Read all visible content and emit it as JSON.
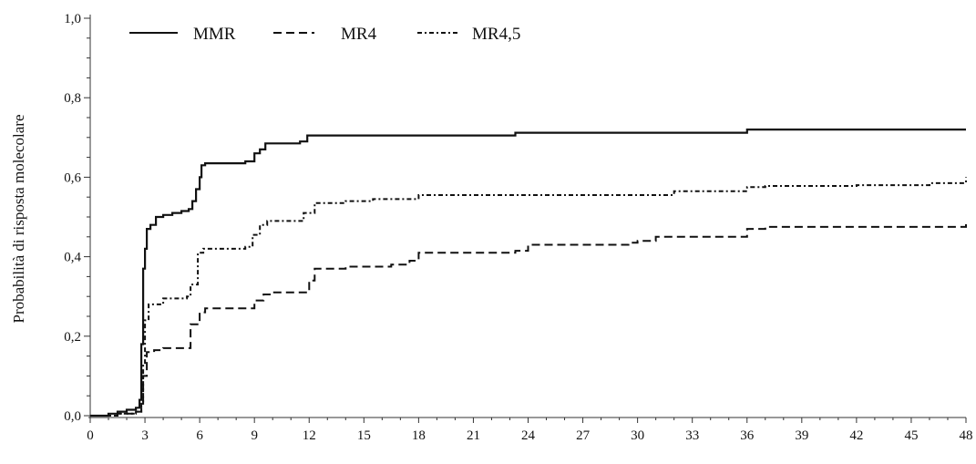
{
  "chart_data": {
    "type": "line",
    "title": "",
    "xlabel": "",
    "ylabel": "Probabilità di risposta molecolare",
    "xlim": [
      0,
      48
    ],
    "ylim": [
      0,
      1.0
    ],
    "x_ticks": [
      0,
      3,
      6,
      9,
      12,
      15,
      18,
      21,
      24,
      27,
      30,
      33,
      36,
      39,
      42,
      45,
      48
    ],
    "x_tick_labels": [
      "0",
      "3",
      "6",
      "9",
      "12",
      "15",
      "18",
      "21",
      "24",
      "27",
      "30",
      "33",
      "36",
      "39",
      "42",
      "45",
      "48"
    ],
    "y_ticks": [
      0,
      0.2,
      0.4,
      0.6,
      0.8,
      1.0
    ],
    "y_tick_labels": [
      "0,0",
      "0,2",
      "0,4",
      "0,6",
      "0,8",
      "1,0"
    ],
    "grid": false,
    "legend_position": "top-left",
    "series": [
      {
        "name": "MMR",
        "style": "solid",
        "color": "#111111",
        "x": [
          0,
          1,
          1.5,
          2,
          2.5,
          2.7,
          2.8,
          2.9,
          3.0,
          3.1,
          3.3,
          3.6,
          4.0,
          4.5,
          5.0,
          5.4,
          5.6,
          5.8,
          6.0,
          6.1,
          6.3,
          7.0,
          8.5,
          9.0,
          9.3,
          9.6,
          11.5,
          11.9,
          23.3,
          36.0,
          48.0
        ],
        "y": [
          0,
          0.005,
          0.01,
          0.015,
          0.02,
          0.04,
          0.18,
          0.37,
          0.42,
          0.47,
          0.48,
          0.5,
          0.505,
          0.51,
          0.515,
          0.52,
          0.54,
          0.57,
          0.6,
          0.63,
          0.635,
          0.635,
          0.64,
          0.66,
          0.67,
          0.685,
          0.69,
          0.705,
          0.712,
          0.72,
          0.72
        ]
      },
      {
        "name": "MR4",
        "style": "dashed",
        "color": "#111111",
        "x": [
          0,
          1.5,
          2.5,
          2.8,
          2.9,
          3.1,
          3.5,
          4.0,
          5.3,
          5.5,
          6.0,
          6.3,
          8.6,
          9.0,
          9.5,
          10.0,
          11.7,
          12.0,
          12.3,
          14.0,
          16.5,
          17.5,
          18.0,
          23.3,
          24.0,
          29.5,
          30.0,
          31.0,
          35.5,
          36.0,
          37.0,
          47.5,
          48.0
        ],
        "y": [
          0,
          0.005,
          0.01,
          0.03,
          0.1,
          0.16,
          0.165,
          0.17,
          0.17,
          0.23,
          0.26,
          0.27,
          0.27,
          0.29,
          0.305,
          0.31,
          0.31,
          0.34,
          0.37,
          0.375,
          0.38,
          0.39,
          0.41,
          0.415,
          0.43,
          0.435,
          0.44,
          0.45,
          0.45,
          0.47,
          0.475,
          0.475,
          0.485
        ]
      },
      {
        "name": "MR4,5",
        "style": "dash-dot",
        "color": "#111111",
        "x": [
          0,
          1.5,
          2.5,
          2.8,
          2.9,
          3.0,
          3.2,
          4.0,
          5.3,
          5.5,
          5.9,
          6.2,
          8.5,
          8.9,
          9.3,
          9.7,
          11.2,
          11.7,
          12.3,
          14.0,
          15.5,
          18.0,
          31.0,
          32.0,
          35.5,
          36.0,
          37.0,
          42.0,
          46.0,
          47.5,
          48.0
        ],
        "y": [
          0,
          0.005,
          0.01,
          0.03,
          0.13,
          0.24,
          0.28,
          0.295,
          0.3,
          0.33,
          0.41,
          0.42,
          0.425,
          0.455,
          0.48,
          0.49,
          0.49,
          0.51,
          0.535,
          0.54,
          0.545,
          0.555,
          0.555,
          0.565,
          0.565,
          0.575,
          0.578,
          0.58,
          0.585,
          0.585,
          0.6
        ]
      }
    ]
  }
}
